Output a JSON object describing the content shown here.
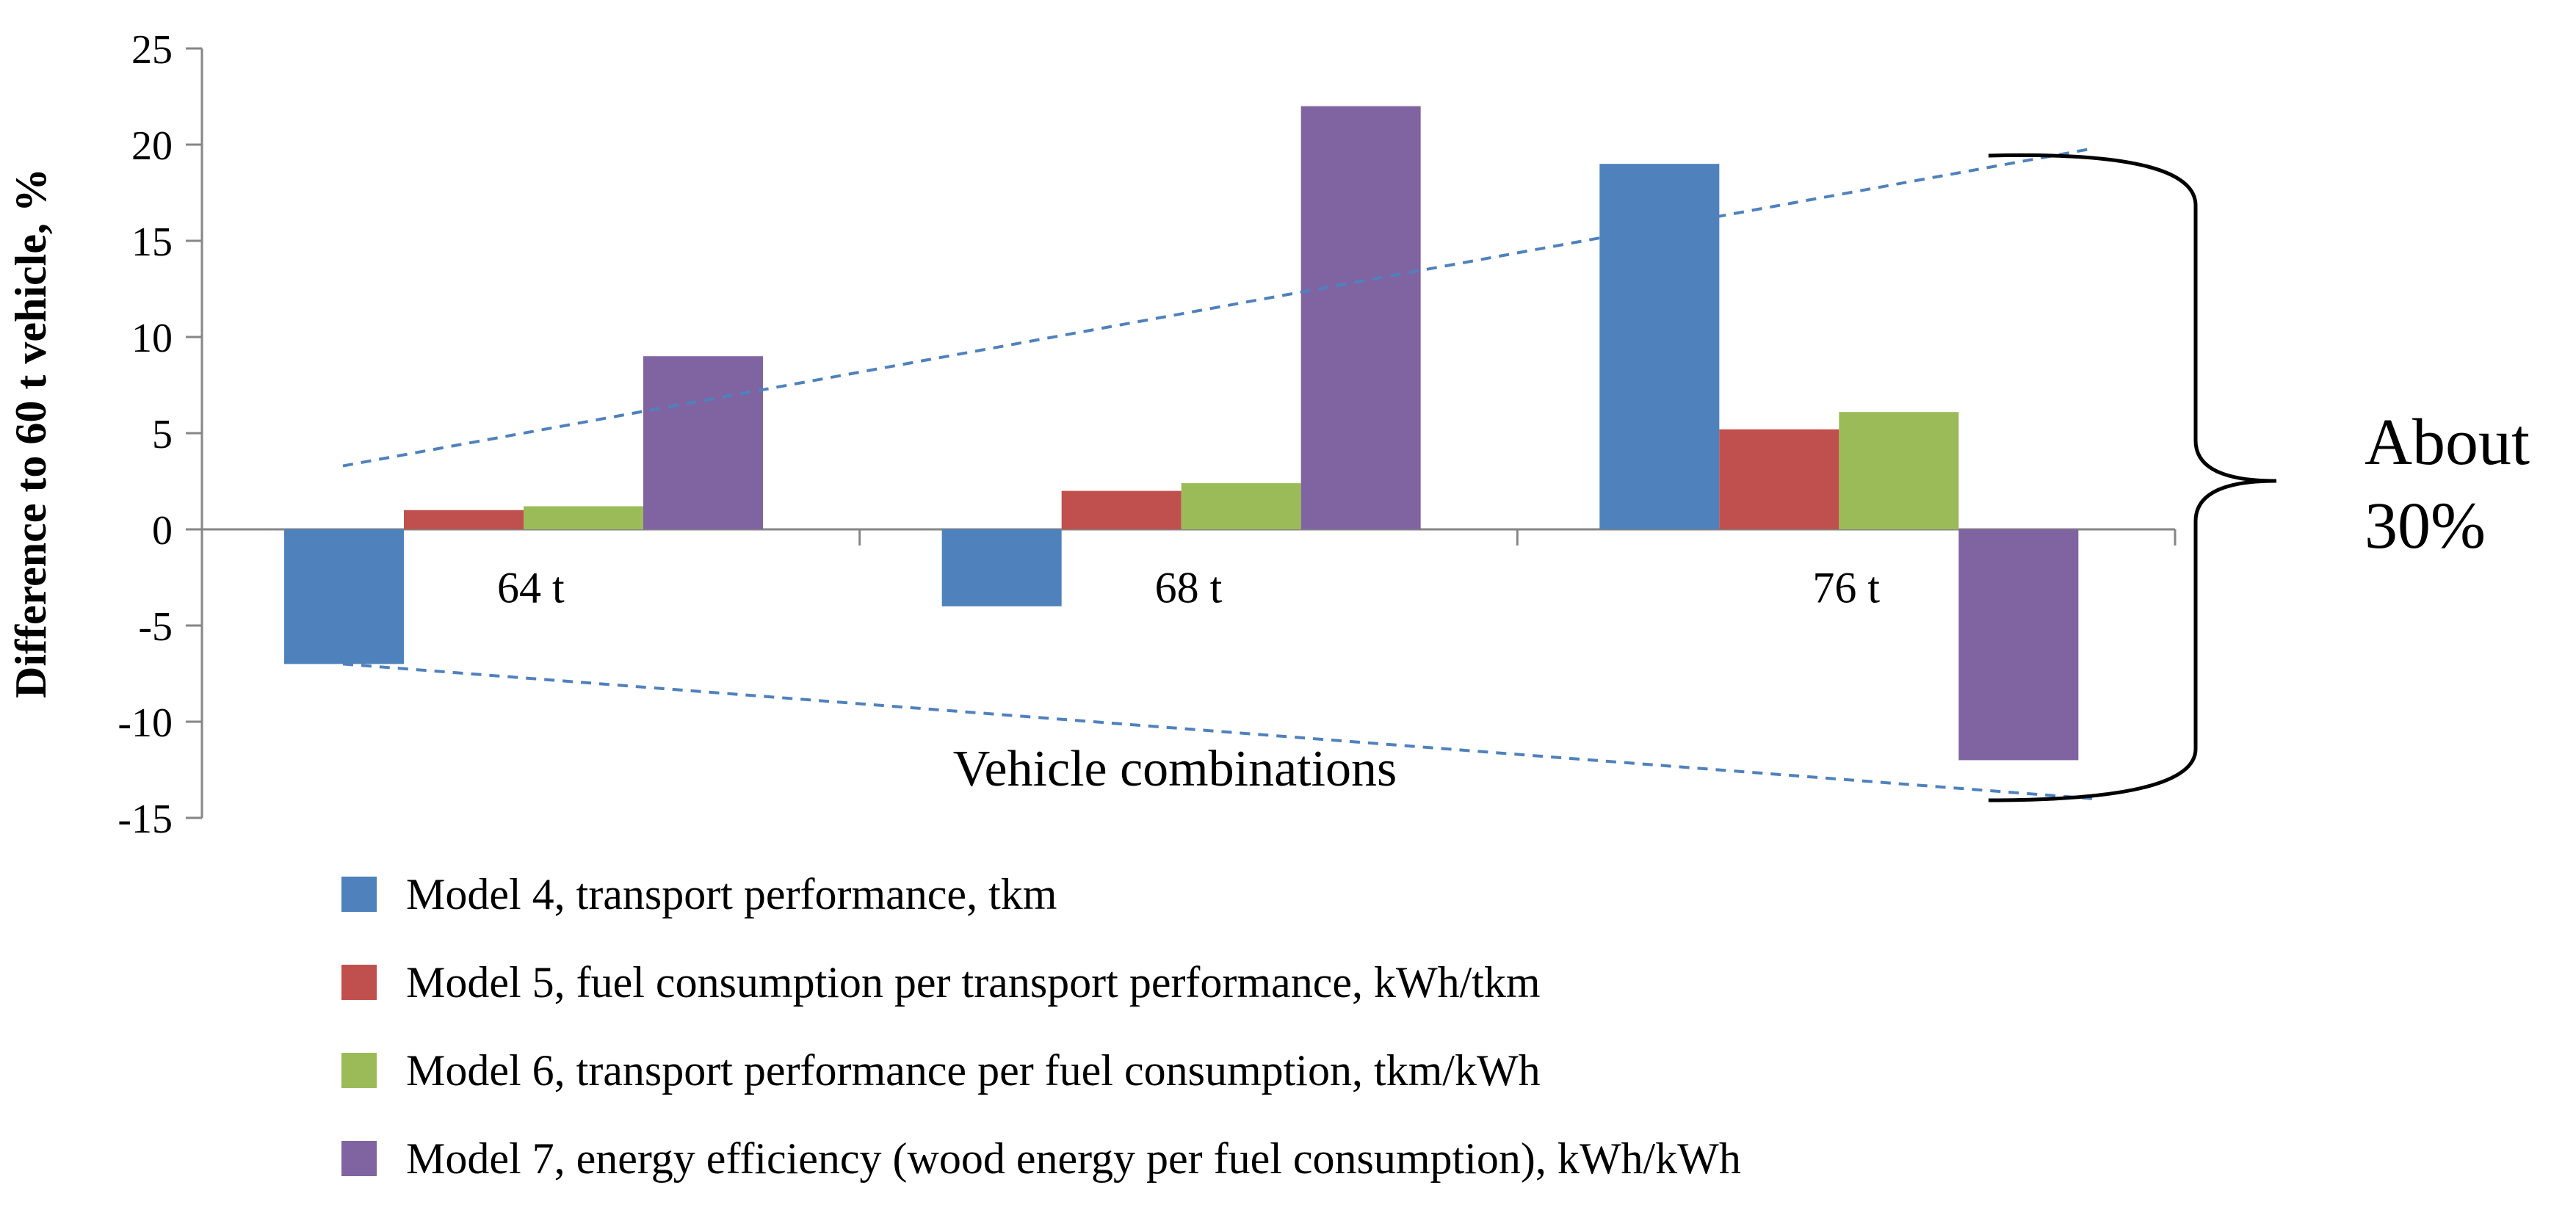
{
  "chart_data": {
    "type": "bar",
    "ylabel": "Difference to 60 t vehicle, %",
    "xlabel": "Vehicle combinations",
    "categories": [
      "64 t",
      "68 t",
      "76 t"
    ],
    "ylim": [
      -15,
      25
    ],
    "yticks": [
      -15,
      -10,
      -5,
      0,
      5,
      10,
      15,
      20,
      25
    ],
    "ytick_labels": [
      "-15",
      "-10",
      "-5",
      "0",
      "5",
      "10",
      "15",
      "20",
      "25"
    ],
    "series": [
      {
        "name": "Model 4, transport performance, tkm",
        "color": "#4F81BD",
        "values": [
          -7,
          -4,
          19
        ]
      },
      {
        "name": "Model 5, fuel consumption per transport performance, kWh/tkm",
        "color": "#C0504D",
        "values": [
          1,
          2,
          5.2
        ]
      },
      {
        "name": "Model 6, transport performance per fuel consumption, tkm/kWh",
        "color": "#9BBB59",
        "values": [
          1.2,
          2.4,
          6.1
        ]
      },
      {
        "name": "Model 7, energy efficiency (wood energy per fuel consumption), kWh/kWh",
        "color": "#8064A2",
        "values": [
          9,
          22,
          -12
        ]
      }
    ],
    "trend_lines": [
      {
        "name": "upper-envelope",
        "from": {
          "category": "64 t",
          "value": 3.3
        },
        "to": {
          "category": "76 t",
          "value": 19.8
        },
        "color": "#4F81BD"
      },
      {
        "name": "lower-envelope",
        "from": {
          "category": "64 t",
          "value": -7
        },
        "to": {
          "category": "76 t",
          "value": -14
        },
        "color": "#4F81BD"
      }
    ],
    "annotation": {
      "line1": "About",
      "line2": "30%"
    },
    "legend_position": "bottom"
  }
}
